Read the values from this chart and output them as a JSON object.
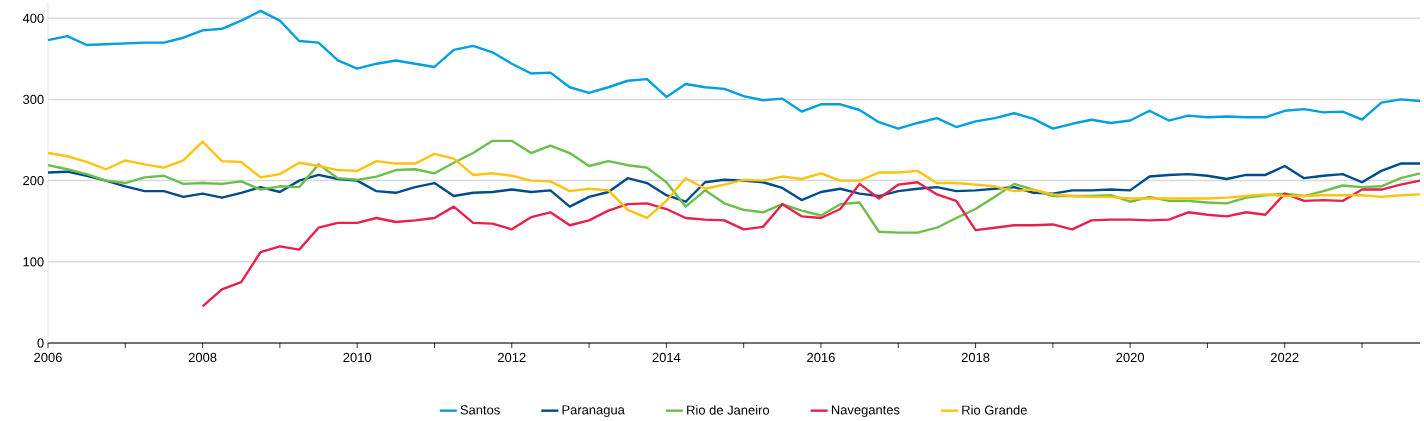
{
  "chart_data": {
    "type": "line",
    "x": [
      2006,
      2006.25,
      2006.5,
      2006.75,
      2007,
      2007.25,
      2007.5,
      2007.75,
      2008,
      2008.25,
      2008.5,
      2008.75,
      2009,
      2009.25,
      2009.5,
      2009.75,
      2010,
      2010.25,
      2010.5,
      2010.75,
      2011,
      2011.25,
      2011.5,
      2011.75,
      2012,
      2012.25,
      2012.5,
      2012.75,
      2013,
      2013.25,
      2013.5,
      2013.75,
      2014,
      2014.25,
      2014.5,
      2014.75,
      2015,
      2015.25,
      2015.5,
      2015.75,
      2016,
      2016.25,
      2016.5,
      2016.75,
      2017,
      2017.25,
      2017.5,
      2017.75,
      2018,
      2018.25,
      2018.5,
      2018.75,
      2019,
      2019.25,
      2019.5,
      2019.75,
      2020,
      2020.25,
      2020.5,
      2020.75,
      2021,
      2021.25,
      2021.5,
      2021.75,
      2022,
      2022.25,
      2022.5,
      2022.75,
      2023,
      2023.25,
      2023.5,
      2023.75
    ],
    "series": [
      {
        "name": "Santos",
        "color": "#00a0e0",
        "values": [
          373,
          378,
          367,
          368,
          369,
          370,
          370,
          376,
          385,
          387,
          397,
          409,
          397,
          372,
          370,
          348,
          338,
          344,
          348,
          344,
          340,
          361,
          366,
          358,
          344,
          332,
          333,
          315,
          308,
          315,
          323,
          325,
          303,
          319,
          315,
          313,
          304,
          299,
          301,
          285,
          294,
          294,
          287,
          272,
          264,
          271,
          277,
          266,
          273,
          277,
          283,
          276,
          264,
          270,
          275,
          271,
          274,
          286,
          274,
          280,
          278,
          279,
          278,
          278,
          286,
          288,
          284,
          285,
          275,
          296,
          300,
          298
        ]
      },
      {
        "name": "Paranagua",
        "color": "#004b8d",
        "values": [
          210,
          211,
          206,
          200,
          193,
          187,
          187,
          180,
          184,
          179,
          185,
          192,
          186,
          200,
          207,
          202,
          200,
          187,
          185,
          192,
          197,
          181,
          185,
          186,
          189,
          186,
          188,
          168,
          180,
          186,
          203,
          197,
          182,
          174,
          198,
          201,
          200,
          198,
          191,
          176,
          186,
          190,
          184,
          181,
          187,
          190,
          192,
          187,
          188,
          190,
          192,
          185,
          184,
          188,
          188,
          189,
          188,
          205,
          207,
          208,
          206,
          202,
          207,
          207,
          218,
          203,
          206,
          208,
          198,
          212,
          221,
          221
        ]
      },
      {
        "name": "Rio de Janeiro",
        "color": "#6abf4b",
        "values": [
          219,
          214,
          208,
          200,
          197,
          204,
          206,
          196,
          197,
          196,
          199,
          189,
          193,
          192,
          220,
          203,
          201,
          205,
          213,
          214,
          209,
          222,
          234,
          249,
          249,
          234,
          243,
          234,
          218,
          224,
          219,
          216,
          198,
          168,
          188,
          172,
          164,
          161,
          171,
          163,
          157,
          171,
          173,
          137,
          136,
          136,
          142,
          154,
          165,
          180,
          196,
          189,
          181,
          181,
          181,
          182,
          174,
          180,
          175,
          175,
          173,
          172,
          179,
          182,
          184,
          181,
          187,
          194,
          192,
          193,
          203,
          209
        ]
      },
      {
        "name": "Navegantes",
        "color": "#e8214a",
        "values": [
          null,
          null,
          null,
          null,
          null,
          null,
          null,
          null,
          45,
          66,
          75,
          112,
          119,
          115,
          142,
          148,
          148,
          154,
          149,
          151,
          154,
          168,
          148,
          147,
          140,
          155,
          161,
          145,
          151,
          163,
          171,
          172,
          165,
          154,
          152,
          151,
          140,
          143,
          171,
          156,
          154,
          165,
          196,
          178,
          195,
          198,
          183,
          175,
          139,
          142,
          145,
          145,
          146,
          140,
          151,
          152,
          152,
          151,
          152,
          161,
          158,
          156,
          161,
          158,
          184,
          175,
          176,
          175,
          189,
          189,
          195,
          200
        ]
      },
      {
        "name": "Rio Grande",
        "color": "#ffc20e",
        "values": [
          234,
          230,
          223,
          214,
          225,
          220,
          216,
          225,
          248,
          224,
          223,
          204,
          208,
          222,
          218,
          213,
          212,
          224,
          221,
          221,
          233,
          227,
          207,
          209,
          206,
          200,
          199,
          187,
          190,
          188,
          164,
          154,
          175,
          203,
          190,
          195,
          201,
          200,
          205,
          202,
          209,
          200,
          200,
          210,
          210,
          212,
          197,
          197,
          195,
          193,
          187,
          189,
          183,
          181,
          180,
          180,
          178,
          178,
          178,
          178,
          178,
          179,
          181,
          183,
          181,
          181,
          182,
          182,
          182,
          180,
          182,
          183
        ]
      }
    ],
    "xlim": [
      2006,
      2023.75
    ],
    "xticks": [
      2006,
      {
        "value": 2007,
        "label": null
      },
      2008,
      {
        "value": 2009,
        "label": null
      },
      2010,
      {
        "value": 2011,
        "label": null
      },
      2012,
      {
        "value": 2013,
        "label": null
      },
      2014,
      {
        "value": 2015,
        "label": null
      },
      2016,
      {
        "value": 2017,
        "label": null
      },
      2018,
      {
        "value": 2019,
        "label": null
      },
      2020,
      {
        "value": 2021,
        "label": null
      },
      2022,
      {
        "value": 2023,
        "label": null
      }
    ],
    "ylim": [
      0,
      420
    ],
    "yticks": [
      0,
      100,
      200,
      300,
      400
    ],
    "grid": "y",
    "legend": "bottom"
  }
}
